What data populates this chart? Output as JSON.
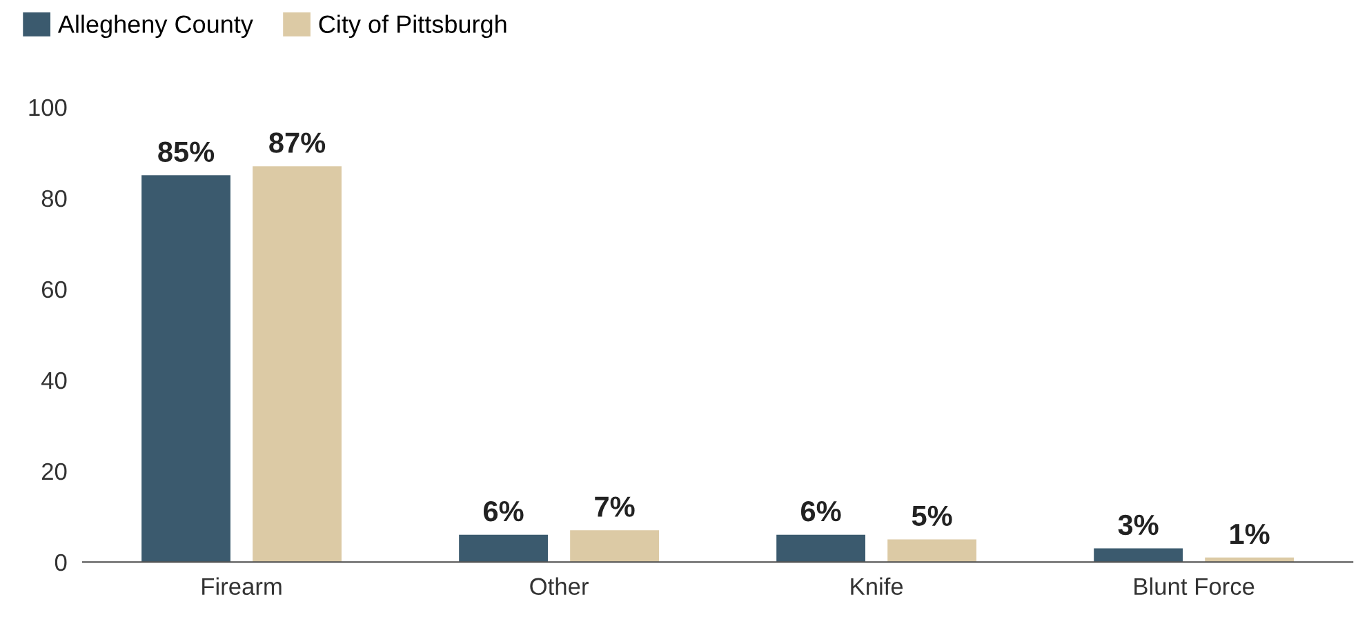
{
  "chart_data": {
    "type": "bar",
    "categories": [
      "Firearm",
      "Other",
      "Knife",
      "Blunt Force"
    ],
    "series": [
      {
        "name": "Allegheny County",
        "color": "#3b5a6e",
        "values": [
          85,
          6,
          6,
          3
        ],
        "value_labels": [
          "85%",
          "6%",
          "6%",
          "3%"
        ]
      },
      {
        "name": "City of Pittsburgh",
        "color": "#dccaa5",
        "values": [
          87,
          7,
          5,
          1
        ],
        "value_labels": [
          "87%",
          "7%",
          "5%",
          "1%"
        ]
      }
    ],
    "ylim": [
      0,
      100
    ],
    "yticks": [
      0,
      20,
      40,
      60,
      80,
      100
    ],
    "grid": false,
    "legend": "top left"
  }
}
